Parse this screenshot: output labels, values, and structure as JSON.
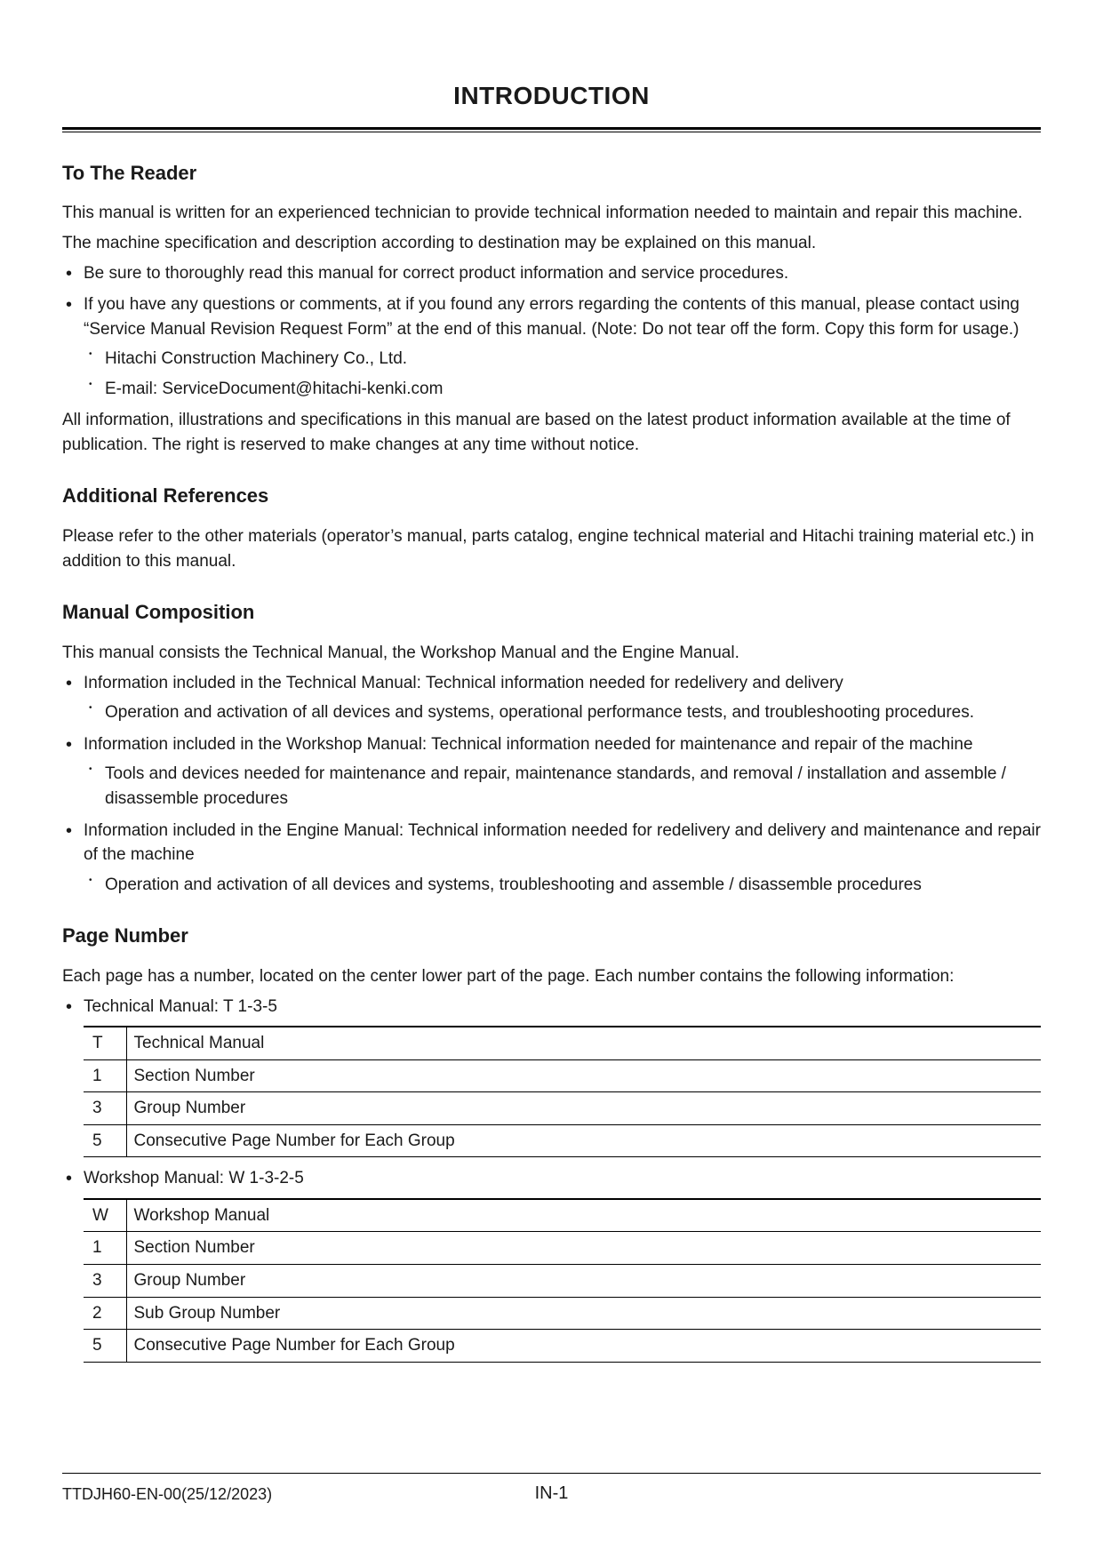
{
  "title": "INTRODUCTION",
  "sections": {
    "to_reader": {
      "heading": "To The Reader",
      "p1": "This manual is written for an experienced technician to provide technical information needed to maintain and repair this machine.",
      "p2": "The machine specification and description according to destination may be explained on this manual.",
      "b1": "Be sure to thoroughly read this manual for correct product information and service procedures.",
      "b2": "If you have any questions or comments, at if you found any errors regarding the contents of this manual, please contact using “Service Manual Revision Request Form” at the end of this manual. (Note: Do not tear off the form. Copy this form for usage.)",
      "b2_s1": "Hitachi Construction Machinery Co., Ltd.",
      "b2_s2": "E-mail: ServiceDocument@hitachi-kenki.com",
      "p3": "All information, illustrations and specifications in this manual are based on the latest product information available at the time of publication. The right is reserved to make changes at any time without notice."
    },
    "add_ref": {
      "heading": "Additional References",
      "p1": "Please refer to the other materials (operator’s manual, parts catalog, engine technical material and Hitachi training material etc.) in addition to this manual."
    },
    "manual_comp": {
      "heading": "Manual Composition",
      "p1": "This manual consists the Technical Manual, the Workshop Manual and the Engine Manual.",
      "b1": "Information included in the Technical Manual: Technical information needed for redelivery and delivery",
      "b1_s1": "Operation and activation of all devices and systems, operational performance tests, and troubleshooting procedures.",
      "b2": "Information included in the Workshop Manual: Technical information needed for maintenance and repair of the machine",
      "b2_s1": "Tools and devices needed for maintenance and repair, maintenance standards, and removal / installation and assemble / disassemble procedures",
      "b3": "Information included in the Engine Manual: Technical information needed for redelivery and delivery and maintenance and repair of the machine",
      "b3_s1": "Operation and activation of all devices and systems, troubleshooting and assemble / disassemble procedures"
    },
    "page_number": {
      "heading": "Page Number",
      "p1": "Each page has a number, located on the center lower part of the page. Each number contains the following information:",
      "b1": "Technical Manual: T 1-3-5",
      "b2": "Workshop Manual: W 1-3-2-5",
      "table1": [
        {
          "code": "T",
          "desc": "Technical Manual"
        },
        {
          "code": "1",
          "desc": "Section Number"
        },
        {
          "code": "3",
          "desc": "Group Number"
        },
        {
          "code": "5",
          "desc": "Consecutive Page Number for Each Group"
        }
      ],
      "table2": [
        {
          "code": "W",
          "desc": "Workshop Manual"
        },
        {
          "code": "1",
          "desc": "Section Number"
        },
        {
          "code": "3",
          "desc": "Group Number"
        },
        {
          "code": "2",
          "desc": "Sub Group Number"
        },
        {
          "code": "5",
          "desc": "Consecutive Page Number for Each Group"
        }
      ]
    }
  },
  "footer": {
    "left": "TTDJH60-EN-00(25/12/2023)",
    "center": "IN-1"
  }
}
